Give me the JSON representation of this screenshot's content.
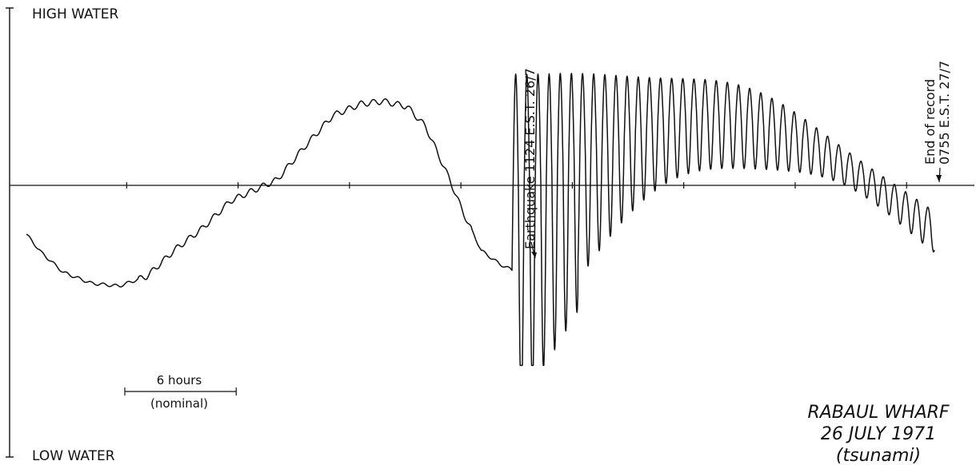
{
  "chart_data": {
    "type": "line",
    "title_lines": [
      "RABAUL WHARF",
      "26 JULY 1971",
      "(tsunami)"
    ],
    "y_top_label": "HIGH WATER",
    "y_bottom_label": "LOW WATER",
    "scale_bar": {
      "label": "6 hours",
      "sublabel": "(nominal)",
      "hours": 6
    },
    "annotations": {
      "earthquake": "Earthquake 1124 E.S.T. 26/7",
      "end_line1": "End of record",
      "end_line2": "0755 E.S.T. 27/7"
    },
    "x_unit": "hours",
    "xlim": [
      0,
      49.2
    ],
    "ylim": [
      -100,
      100
    ],
    "grid": false,
    "series": [
      {
        "points": [
          [
            0.0,
            -26.6
          ],
          [
            0.8,
            -36.5
          ],
          [
            2.0,
            -47.4
          ],
          [
            3.5,
            -53.3
          ],
          [
            5.0,
            -54.8
          ],
          [
            6.5,
            -49.4
          ],
          [
            8.0,
            -35.0
          ],
          [
            9.5,
            -23.2
          ],
          [
            11.0,
            -8.4
          ],
          [
            12.5,
            -1.5
          ],
          [
            13.5,
            3.0
          ],
          [
            15.0,
            21.2
          ],
          [
            16.5,
            38.0
          ],
          [
            18.0,
            44.3
          ],
          [
            19.2,
            45.8
          ],
          [
            20.5,
            42.9
          ],
          [
            21.5,
            32.0
          ],
          [
            22.8,
            3.0
          ],
          [
            23.5,
            -14.3
          ],
          [
            24.5,
            -35.5
          ],
          [
            25.5,
            -42.9
          ],
          [
            26.2,
            -46.3
          ]
        ]
      }
    ]
  }
}
